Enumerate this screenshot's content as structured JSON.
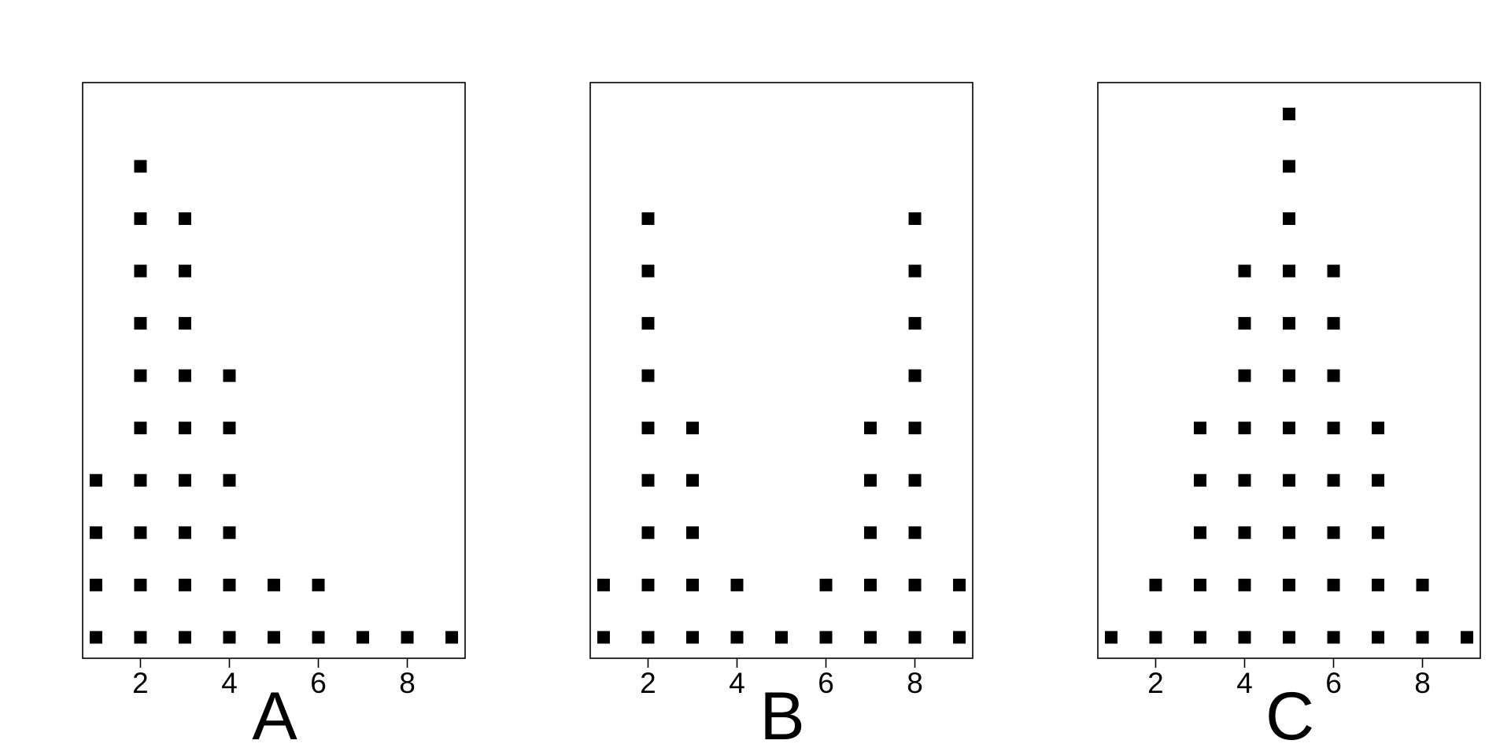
{
  "chart_data": [
    {
      "type": "scatter",
      "title": "",
      "xlabel": "A",
      "ylabel": "",
      "xlim": [
        0.7,
        9.3
      ],
      "ylim": [
        0.6,
        11.6
      ],
      "xticks": [
        "2",
        "4",
        "6",
        "8"
      ],
      "grid": false,
      "legend": "none",
      "counts": [
        4,
        10,
        9,
        6,
        2,
        2,
        1,
        1,
        1
      ]
    },
    {
      "type": "scatter",
      "title": "",
      "xlabel": "B",
      "ylabel": "",
      "xlim": [
        0.7,
        9.3
      ],
      "ylim": [
        0.6,
        11.6
      ],
      "xticks": [
        "2",
        "4",
        "6",
        "8"
      ],
      "grid": false,
      "legend": "none",
      "counts": [
        2,
        9,
        5,
        2,
        1,
        2,
        5,
        9,
        2
      ]
    },
    {
      "type": "scatter",
      "title": "",
      "xlabel": "C",
      "ylabel": "",
      "xlim": [
        0.7,
        9.3
      ],
      "ylim": [
        0.6,
        11.6
      ],
      "xticks": [
        "2",
        "4",
        "6",
        "8"
      ],
      "grid": false,
      "legend": "none",
      "counts": [
        1,
        2,
        5,
        8,
        11,
        8,
        5,
        2,
        1
      ]
    }
  ],
  "colors": {
    "marker": "#000000",
    "frame": "#000000",
    "background": "#ffffff"
  }
}
